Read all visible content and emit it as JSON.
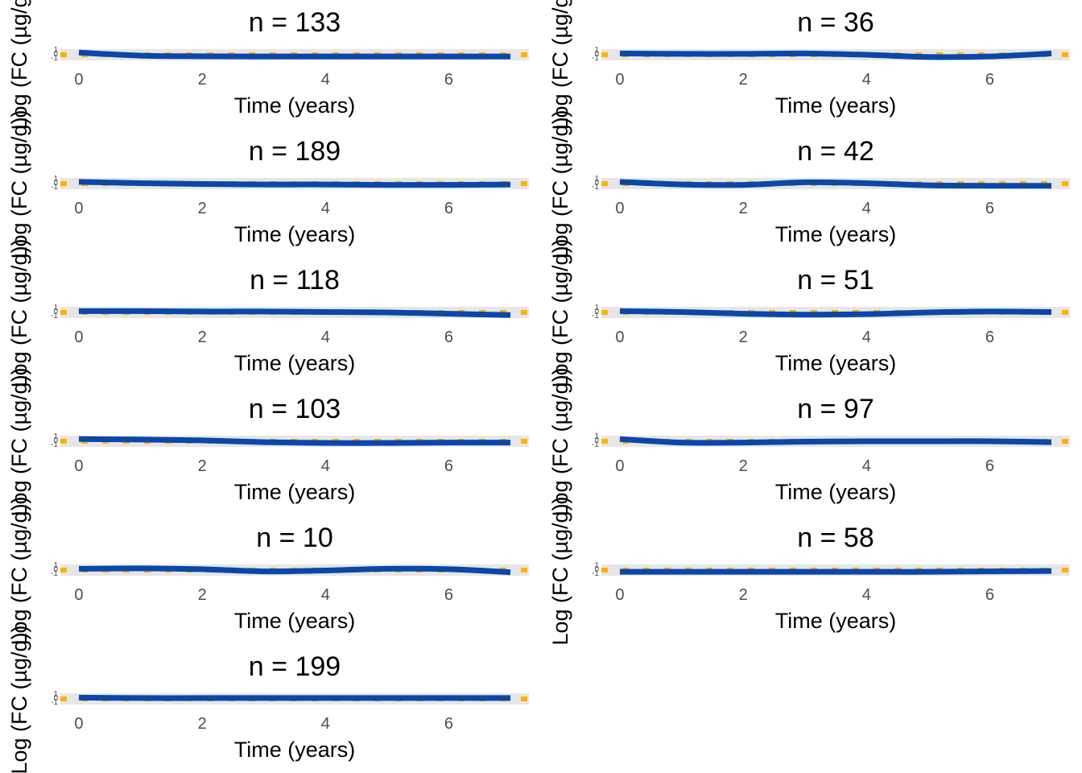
{
  "chart_data": {
    "type": "line",
    "layout": "faceted grid, 2 columns",
    "xlabel": "Time (years)",
    "ylabel": "Log (FC (µg/g))",
    "xlim": [
      -0.3,
      7.3
    ],
    "xticks": [
      "0",
      "2",
      "4",
      "6"
    ],
    "ylim": [
      -1.3,
      1.3
    ],
    "grid": false,
    "colors": {
      "trajectory": "#0a47a8",
      "reference": "#ffb000",
      "band": "#e6e6e6"
    },
    "panels": [
      {
        "title": "n = 133",
        "x": [
          0,
          1,
          2,
          3,
          4,
          5,
          6,
          7
        ],
        "values": [
          0.5,
          -0.2,
          -0.35,
          -0.4,
          -0.4,
          -0.4,
          -0.4,
          -0.4
        ]
      },
      {
        "title": "n = 36",
        "x": [
          0,
          1,
          2,
          3,
          4,
          5,
          6,
          7
        ],
        "values": [
          0.3,
          0.2,
          0.2,
          0.3,
          0.0,
          -0.5,
          -0.4,
          0.3
        ]
      },
      {
        "title": "n = 189",
        "x": [
          0,
          1,
          2,
          3,
          4,
          5,
          6,
          7
        ],
        "values": [
          0.4,
          0.1,
          -0.1,
          -0.2,
          -0.2,
          -0.3,
          -0.3,
          -0.2
        ]
      },
      {
        "title": "n = 42",
        "x": [
          0,
          1,
          2,
          3,
          4,
          5,
          6,
          7
        ],
        "values": [
          0.4,
          -0.2,
          -0.3,
          0.3,
          0.1,
          -0.4,
          -0.5,
          -0.5
        ]
      },
      {
        "title": "n = 118",
        "x": [
          0,
          1,
          2,
          3,
          4,
          5,
          6,
          7
        ],
        "values": [
          0.3,
          0.3,
          0.2,
          0.2,
          0.1,
          0.0,
          -0.3,
          -0.6
        ]
      },
      {
        "title": "n = 51",
        "x": [
          0,
          1,
          2,
          3,
          4,
          5,
          6,
          7
        ],
        "values": [
          0.3,
          0.1,
          -0.3,
          -0.5,
          -0.4,
          0.0,
          0.2,
          0.1
        ]
      },
      {
        "title": "n = 103",
        "x": [
          0,
          1,
          2,
          3,
          4,
          5,
          6,
          7
        ],
        "values": [
          0.5,
          0.4,
          0.2,
          -0.2,
          -0.4,
          -0.4,
          -0.3,
          -0.3
        ]
      },
      {
        "title": "n = 97",
        "x": [
          0,
          1,
          2,
          3,
          4,
          5,
          6,
          7
        ],
        "values": [
          0.5,
          -0.3,
          -0.3,
          -0.1,
          0.0,
          0.0,
          0.0,
          -0.2
        ]
      },
      {
        "title": "n = 10",
        "x": [
          0,
          1,
          2,
          3,
          4,
          5,
          6,
          7
        ],
        "values": [
          0.3,
          0.4,
          0.2,
          -0.3,
          -0.1,
          0.3,
          0.2,
          -0.5
        ]
      },
      {
        "title": "n = 58",
        "x": [
          0,
          1,
          2,
          3,
          4,
          5,
          6,
          7
        ],
        "values": [
          -0.4,
          -0.4,
          -0.4,
          -0.4,
          -0.4,
          -0.4,
          -0.3,
          -0.2
        ]
      },
      {
        "title": "n = 199",
        "x": [
          0,
          1,
          2,
          3,
          4,
          5,
          6,
          7
        ],
        "values": [
          0.3,
          0.2,
          0.2,
          0.2,
          0.2,
          0.2,
          0.2,
          0.2
        ]
      }
    ]
  }
}
